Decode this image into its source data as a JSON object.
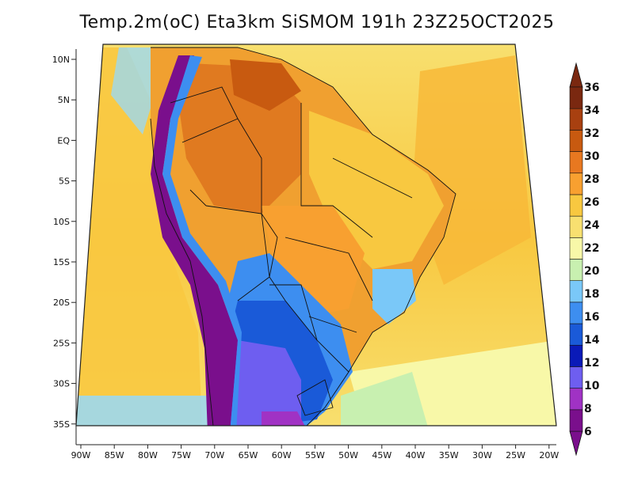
{
  "title": "Temp.2m(oC) Eta3km SiSMOM 191h 23Z25OCT2025",
  "lat_labels": [
    "10N",
    "5N",
    "EQ",
    "5S",
    "10S",
    "15S",
    "20S",
    "25S",
    "30S",
    "35S"
  ],
  "lon_labels": [
    "90W",
    "85W",
    "80W",
    "75W",
    "70W",
    "65W",
    "60W",
    "55W",
    "50W",
    "45W",
    "40W",
    "35W",
    "30W",
    "25W",
    "20W"
  ],
  "colorbar": {
    "labels": [
      "6",
      "8",
      "10",
      "12",
      "14",
      "16",
      "18",
      "20",
      "22",
      "24",
      "26",
      "28",
      "30",
      "32",
      "34",
      "36"
    ],
    "colors": [
      "#7a0f8c",
      "#a032c4",
      "#6e5ef0",
      "#0a1ab8",
      "#1a5ad8",
      "#3d8ef0",
      "#7ac8f8",
      "#c8f0b0",
      "#f8f8a8",
      "#f8e070",
      "#f8c840",
      "#f8a030",
      "#e87820",
      "#c85a10",
      "#a84010",
      "#7a2810"
    ]
  },
  "icons": {
    "colorbar_top": "triangle-up-icon",
    "colorbar_bottom": "triangle-down-icon"
  }
}
